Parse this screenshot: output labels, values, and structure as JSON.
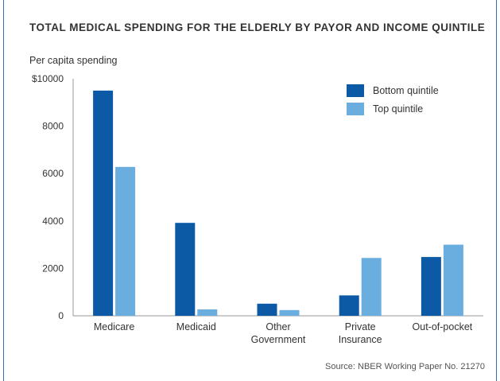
{
  "chart_data": {
    "type": "bar",
    "title": "TOTAL MEDICAL SPENDING FOR THE ELDERLY BY PAYOR AND INCOME QUINTILE",
    "ylabel": "Per capita spending",
    "xlabel": "",
    "ylim": [
      0,
      10000
    ],
    "yticks": [
      0,
      2000,
      4000,
      6000,
      8000,
      10000
    ],
    "ytick_labels": [
      "0",
      "2000",
      "4000",
      "6000",
      "8000",
      "$10000"
    ],
    "categories": [
      [
        "Medicare"
      ],
      [
        "Medicaid"
      ],
      [
        "Other",
        "Government"
      ],
      [
        "Private",
        "Insurance"
      ],
      [
        "Out-of-pocket"
      ]
    ],
    "series": [
      {
        "name": "Bottom quintile",
        "color": "#0c5aa6",
        "values": [
          9500,
          3920,
          510,
          860,
          2480
        ]
      },
      {
        "name": "Top quintile",
        "color": "#6aaee0",
        "values": [
          6280,
          270,
          240,
          2440,
          3000
        ]
      }
    ],
    "legend_position": "top-right",
    "grid": false
  },
  "source": "Source: NBER Working Paper No. 21270"
}
